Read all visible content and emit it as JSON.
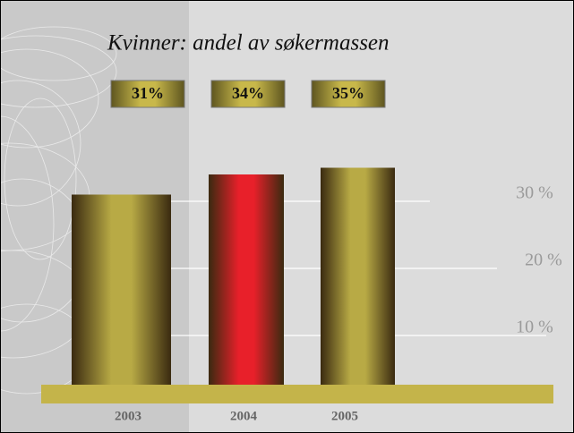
{
  "chart_data": {
    "type": "bar",
    "title": "Kvinner: andel av søkermassen",
    "categories": [
      "2003",
      "2004",
      "2005"
    ],
    "values": [
      31,
      34,
      35
    ],
    "value_labels": [
      "31%",
      "34%",
      "35%"
    ],
    "colors": [
      "#b8aa45",
      "#e8202a",
      "#b8aa45"
    ],
    "ylim": [
      0,
      60
    ],
    "yticks": [
      {
        "value": 10,
        "label": "10 %"
      },
      {
        "value": 20,
        "label": "20 %"
      },
      {
        "value": 30,
        "label": "30 %"
      }
    ],
    "grid": true
  }
}
